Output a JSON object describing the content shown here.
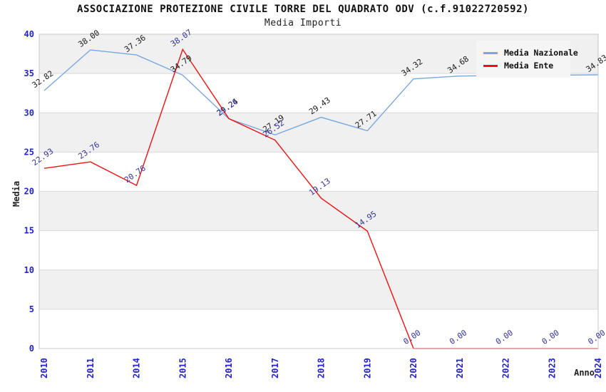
{
  "header": {
    "title": "ASSOCIAZIONE PROTEZIONE CIVILE TORRE DEL QUADRATO ODV (c.f.91022720592)",
    "subtitle": "Media Importi"
  },
  "legend": {
    "position": "top-right",
    "items": [
      {
        "label": "Media Nazionale",
        "color": "#7aa7dd"
      },
      {
        "label": "Media Ente",
        "color": "#ee1111"
      }
    ]
  },
  "axes": {
    "y_title": "Media",
    "x_title": "Anno",
    "y_ticks": [
      0,
      5,
      10,
      15,
      20,
      25,
      30,
      35,
      40
    ],
    "tick_color": "#2222cc"
  },
  "chart_data": {
    "type": "line",
    "title": "Media Importi",
    "xlabel": "Anno",
    "ylabel": "Media",
    "ylim": [
      0,
      40
    ],
    "grid": "horizontal-bands-every-5",
    "legend_position": "top-right",
    "categories": [
      "2010",
      "2011",
      "2014",
      "2015",
      "2016",
      "2017",
      "2018",
      "2019",
      "2020",
      "2021",
      "2022",
      "2023",
      "2024"
    ],
    "series": [
      {
        "name": "Media Nazionale",
        "color": "#7aa7dd",
        "label_color": "#1a1a1a",
        "values": [
          32.82,
          38.0,
          37.36,
          34.79,
          29.24,
          27.19,
          29.43,
          27.71,
          34.32,
          34.68,
          34.74,
          34.79,
          34.83
        ],
        "point_labels": [
          "32.82",
          "38.00",
          "37.36",
          "34.79",
          "29.24",
          "27.19",
          "29.43",
          "27.71",
          "34.32",
          "34.68",
          null,
          null,
          "34.83"
        ]
      },
      {
        "name": "Media Ente",
        "color": "#ee1111",
        "label_color": "#333399",
        "values": [
          22.93,
          23.76,
          20.76,
          38.07,
          29.26,
          26.52,
          19.13,
          14.95,
          0,
          0,
          0,
          0,
          0
        ],
        "point_labels": [
          "22.93",
          "23.76",
          "20.76",
          "38.07",
          "29.26",
          "26.52",
          "19.13",
          "14.95",
          "0.00",
          "0.00",
          "0.00",
          "0.00",
          "0.00"
        ]
      }
    ]
  },
  "colors": {
    "band_gray": "#f0f0f0",
    "band_white": "#ffffff",
    "gridline": "#d9d9d9",
    "plot_border": "#c9c9c9",
    "background": "#ffffff",
    "title_text": "#111111",
    "axis_title_text": "#222222",
    "axis_text": "#2222cc",
    "legend_bg": "#f5f5f5",
    "legend_text": "#111111"
  }
}
